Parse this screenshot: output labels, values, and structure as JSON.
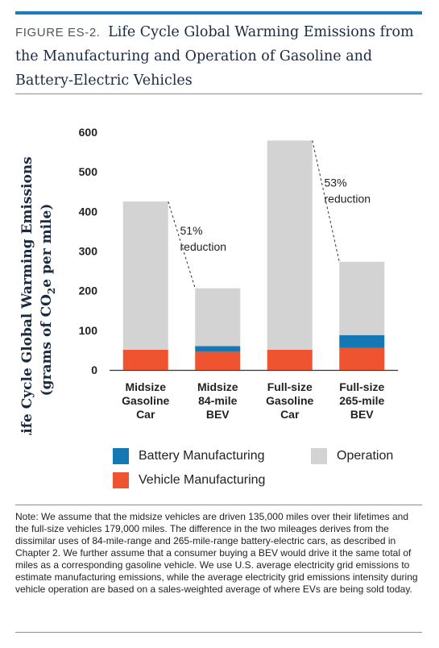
{
  "figure": {
    "label": "FIGURE ES-2.",
    "title": "Life Cycle Global Warming Emissions from the Manufacturing and Operation of Gasoline and Battery-Electric Vehicles"
  },
  "colors": {
    "battery": "#1478b4",
    "vehicle": "#ef5430",
    "operation": "#d3d3d3",
    "accent": "#1a7bbf"
  },
  "legend": {
    "battery": "Battery Manufacturing",
    "operation": "Operation",
    "vehicle": "Vehicle Manufacturing"
  },
  "chart_data": {
    "type": "bar",
    "stacked": true,
    "ylabel_line1": "Life Cycle Global Warming Emissions",
    "ylabel_line2_pre": "(grams of CO",
    "ylabel_sub": "2",
    "ylabel_line2_post": "e per mile)",
    "ylim": [
      0,
      600
    ],
    "yticks": [
      "0",
      "100",
      "200",
      "300",
      "400",
      "500",
      "600"
    ],
    "categories": [
      [
        "Midsize",
        "Gasoline",
        "Car"
      ],
      [
        "Midsize",
        "84-mile",
        "BEV"
      ],
      [
        "Full-size",
        "Gasoline",
        "Car"
      ],
      [
        "Full-size",
        "265-mile",
        "BEV"
      ]
    ],
    "series": [
      {
        "name": "Vehicle Manufacturing",
        "values": [
          51,
          46,
          51,
          56
        ]
      },
      {
        "name": "Battery Manufacturing",
        "values": [
          0,
          14,
          0,
          32
        ]
      },
      {
        "name": "Operation",
        "values": [
          374,
          146,
          528,
          185
        ]
      }
    ],
    "annotations": [
      {
        "from": 0,
        "to": 1,
        "lines": [
          "51%",
          "reduction"
        ]
      },
      {
        "from": 2,
        "to": 3,
        "lines": [
          "53%",
          "reduction"
        ]
      }
    ],
    "legend_position": "bottom"
  },
  "note": "Note: We assume that the midsize vehicles are driven 135,000 miles over their lifetimes and the full-size vehicles 179,000 miles. The difference in the two mileages derives from the dissimilar uses of 84-mile-range and 265-mile-range battery-electric cars, as described in Chapter 2. We further assume that a consumer buying a BEV would drive it the same total of miles as a corresponding gasoline vehicle. We use U.S. average electricity grid emissions to estimate manufacturing emissions, while the average electricity grid emissions intensity during vehicle operation are based on a sales-weighted average of where EVs are being sold today."
}
